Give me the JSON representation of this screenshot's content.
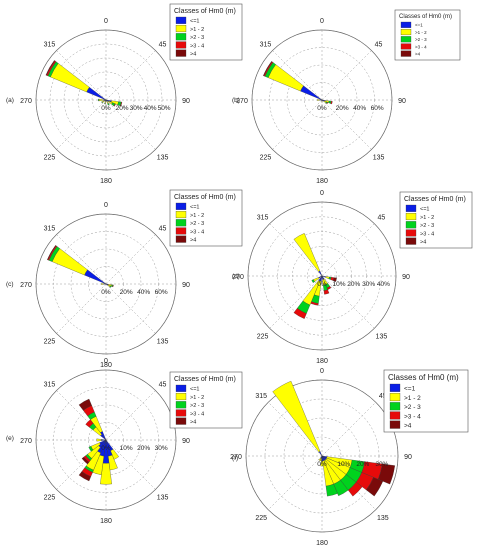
{
  "direction_labels": [
    "0",
    "45",
    "90",
    "135",
    "180",
    "225",
    "270",
    "315"
  ],
  "legend_title": "Classes of Hm0 (m)",
  "legend_items": [
    {
      "label": "<=1",
      "color": "#0a1ee6"
    },
    {
      "label": ">1 - 2",
      "color": "#ffff00"
    },
    {
      "label": ">2 - 3",
      "color": "#00d21e"
    },
    {
      "label": ">3 - 4",
      "color": "#e60a0a"
    },
    {
      "label": ">4",
      "color": "#7a0a0a"
    }
  ],
  "chart_data": [
    {
      "type": "wind-rose",
      "panel_label": "(a)",
      "ring_labels": [
        "20%",
        "30%",
        "40%",
        "50%"
      ],
      "rmax": 50,
      "legend_title": "Classes of Hm0 (m)",
      "categories": [
        "<=1",
        ">1 - 2",
        ">2 - 3",
        ">3 - 4",
        ">4"
      ],
      "sectors": [
        {
          "direction": 300,
          "values": [
            15,
            28,
            2,
            1,
            0.5
          ]
        },
        {
          "direction": 105,
          "values": [
            4,
            5,
            2,
            0.5,
            0
          ]
        },
        {
          "direction": 120,
          "values": [
            2,
            3,
            2,
            0.5,
            0
          ]
        },
        {
          "direction": 150,
          "values": [
            1,
            2,
            1,
            0,
            0
          ]
        },
        {
          "direction": 195,
          "values": [
            1,
            1.5,
            0.5,
            0,
            0
          ]
        },
        {
          "direction": 240,
          "values": [
            1,
            2,
            0.5,
            0,
            0
          ]
        },
        {
          "direction": 270,
          "values": [
            2,
            3,
            0.5,
            0,
            0
          ]
        }
      ]
    },
    {
      "type": "wind-rose",
      "panel_label": "(b)",
      "ring_labels": [
        "20%",
        "40%",
        "60%"
      ],
      "rmax": 60,
      "legend_title": "Classes of Hm0 (m)",
      "categories": [
        "<=1",
        ">1 - 2",
        ">2 - 3",
        ">3 - 4",
        ">4"
      ],
      "sectors": [
        {
          "direction": 300,
          "values": [
            20,
            30,
            3,
            1,
            0.5
          ]
        },
        {
          "direction": 105,
          "values": [
            3,
            3,
            2,
            1,
            0
          ]
        },
        {
          "direction": 120,
          "values": [
            2,
            2,
            1,
            0.5,
            0
          ]
        },
        {
          "direction": 180,
          "values": [
            1,
            1,
            0,
            0,
            0
          ]
        },
        {
          "direction": 270,
          "values": [
            2,
            2,
            0,
            0,
            0
          ]
        }
      ]
    },
    {
      "type": "wind-rose",
      "panel_label": "(c)",
      "ring_labels": [
        "20%",
        "40%",
        "60%"
      ],
      "rmax": 60,
      "legend_title": "Classes of Hm0 (m)",
      "categories": [
        "<=1",
        ">1 - 2",
        ">2 - 3",
        ">3 - 4",
        ">4"
      ],
      "sectors": [
        {
          "direction": 300,
          "values": [
            20,
            30,
            3,
            1,
            0.5
          ]
        },
        {
          "direction": 105,
          "values": [
            2,
            3,
            1,
            0.5,
            0
          ]
        },
        {
          "direction": 120,
          "values": [
            2,
            2,
            1,
            0,
            0
          ]
        },
        {
          "direction": 270,
          "values": [
            2,
            2,
            0,
            0,
            0
          ]
        }
      ]
    },
    {
      "type": "wind-rose",
      "panel_label": "(d)",
      "ring_labels": [
        "10%",
        "20%",
        "30%",
        "40%"
      ],
      "rmax": 40,
      "legend_title": "Classes of Hm0 (m)",
      "categories": [
        "<=1",
        ">1 - 2",
        ">2 - 3",
        ">3 - 4",
        ">4"
      ],
      "sectors": [
        {
          "direction": 330,
          "values": [
            3,
            22,
            0,
            0,
            0
          ]
        },
        {
          "direction": 105,
          "values": [
            2,
            2,
            1,
            1.5,
            1.5
          ]
        },
        {
          "direction": 150,
          "values": [
            2,
            3,
            2,
            1,
            0
          ]
        },
        {
          "direction": 165,
          "values": [
            2,
            3,
            3,
            2,
            0
          ]
        },
        {
          "direction": 195,
          "values": [
            3,
            8,
            4,
            1,
            0
          ]
        },
        {
          "direction": 210,
          "values": [
            3,
            14,
            5,
            3,
            0
          ]
        },
        {
          "direction": 240,
          "values": [
            2,
            3,
            1,
            0,
            0
          ]
        }
      ]
    },
    {
      "type": "wind-rose",
      "panel_label": "(e)",
      "ring_labels": [
        "10%",
        "20%",
        "30%"
      ],
      "rmax": 30,
      "legend_title": "Classes of Hm0 (m)",
      "categories": [
        "<=1",
        ">1 - 2",
        ">2 - 3",
        ">3 - 4",
        ">4"
      ],
      "sectors": [
        {
          "direction": 330,
          "values": [
            4,
            7,
            2,
            3,
            3
          ]
        },
        {
          "direction": 315,
          "values": [
            3,
            4,
            2,
            2,
            0
          ]
        },
        {
          "direction": 150,
          "values": [
            5,
            4,
            0,
            0,
            0
          ]
        },
        {
          "direction": 165,
          "values": [
            7,
            6,
            0,
            0,
            0
          ]
        },
        {
          "direction": 180,
          "values": [
            10,
            9,
            0,
            0,
            0
          ]
        },
        {
          "direction": 195,
          "values": [
            7,
            8,
            0,
            0,
            0
          ]
        },
        {
          "direction": 210,
          "values": [
            6,
            8,
            1,
            2,
            2
          ]
        },
        {
          "direction": 225,
          "values": [
            4,
            6,
            1,
            1,
            1
          ]
        },
        {
          "direction": 240,
          "values": [
            3,
            4,
            1,
            0,
            0
          ]
        },
        {
          "direction": 270,
          "values": [
            2,
            2,
            0,
            0,
            0
          ]
        }
      ]
    },
    {
      "type": "wind-rose",
      "panel_label": "(f)",
      "ring_labels": [
        "10%",
        "20%",
        "30%"
      ],
      "rmax": 30,
      "legend_title": "Classes of Hm0 (m)",
      "categories": [
        "<=1",
        ">1 - 2",
        ">2 - 3",
        ">3 - 4",
        ">4"
      ],
      "sectors": [
        {
          "direction": 330,
          "values": [
            2,
            30,
            0,
            0,
            0
          ]
        },
        {
          "direction": 105,
          "values": [
            2,
            10,
            5,
            7,
            5
          ]
        },
        {
          "direction": 120,
          "values": [
            2,
            10,
            5,
            5,
            4
          ]
        },
        {
          "direction": 135,
          "values": [
            2,
            10,
            5,
            3,
            0
          ]
        },
        {
          "direction": 150,
          "values": [
            2,
            10,
            5,
            0,
            0
          ]
        },
        {
          "direction": 165,
          "values": [
            2,
            10,
            4,
            0,
            0
          ]
        },
        {
          "direction": 180,
          "values": [
            2,
            2,
            0,
            0,
            0
          ]
        },
        {
          "direction": 195,
          "values": [
            1,
            1,
            0,
            0,
            0
          ]
        },
        {
          "direction": 210,
          "values": [
            1,
            1,
            0,
            0,
            0
          ]
        }
      ]
    }
  ]
}
